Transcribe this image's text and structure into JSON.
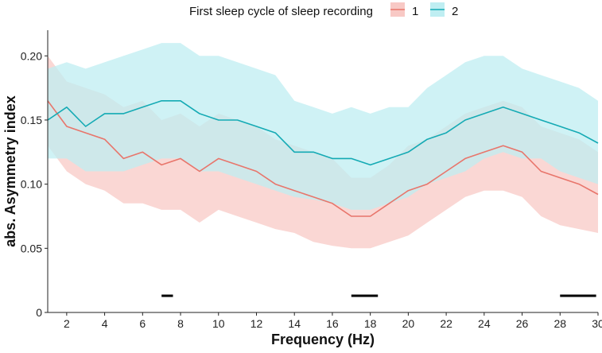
{
  "chart_data": {
    "type": "line",
    "title": "",
    "xlabel": "Frequency (Hz)",
    "ylabel": "abs. Asymmetry index",
    "xlim": [
      1,
      30
    ],
    "ylim": [
      0,
      0.22
    ],
    "x_ticks": [
      2,
      4,
      6,
      8,
      10,
      12,
      14,
      16,
      18,
      20,
      22,
      24,
      26,
      28,
      30
    ],
    "x_tick_labels": [
      "2",
      "4",
      "6",
      "8",
      "10",
      "12",
      "14",
      "16",
      "18",
      "20",
      "22",
      "24",
      "26",
      "28",
      "30"
    ],
    "y_ticks": [
      0,
      0.05,
      0.1,
      0.15,
      0.2
    ],
    "y_tick_labels": [
      "0",
      "0.05",
      "0.10",
      "0.15",
      "0.20"
    ],
    "grid": false,
    "legend": {
      "title": "First sleep cycle of sleep recording",
      "position": "top",
      "entries": [
        "1",
        "2"
      ]
    },
    "x": [
      1,
      2,
      3,
      4,
      5,
      6,
      7,
      8,
      9,
      10,
      11,
      12,
      13,
      14,
      15,
      16,
      17,
      18,
      19,
      20,
      21,
      22,
      23,
      24,
      25,
      26,
      27,
      28,
      29,
      30
    ],
    "series": [
      {
        "name": "1",
        "color": "#e8756b",
        "band_color": "#f8c9c5",
        "values": [
          0.165,
          0.145,
          0.14,
          0.135,
          0.12,
          0.125,
          0.115,
          0.12,
          0.11,
          0.12,
          0.115,
          0.11,
          0.1,
          0.095,
          0.09,
          0.085,
          0.075,
          0.075,
          0.085,
          0.095,
          0.1,
          0.11,
          0.12,
          0.125,
          0.13,
          0.125,
          0.11,
          0.105,
          0.1,
          0.092
        ],
        "lower": [
          0.13,
          0.11,
          0.1,
          0.095,
          0.085,
          0.085,
          0.08,
          0.08,
          0.07,
          0.08,
          0.075,
          0.07,
          0.065,
          0.062,
          0.055,
          0.052,
          0.05,
          0.05,
          0.055,
          0.06,
          0.07,
          0.08,
          0.09,
          0.095,
          0.095,
          0.09,
          0.075,
          0.068,
          0.065,
          0.062
        ],
        "upper": [
          0.2,
          0.18,
          0.175,
          0.17,
          0.16,
          0.165,
          0.15,
          0.155,
          0.145,
          0.155,
          0.15,
          0.145,
          0.135,
          0.13,
          0.125,
          0.12,
          0.105,
          0.105,
          0.115,
          0.13,
          0.135,
          0.145,
          0.155,
          0.16,
          0.165,
          0.16,
          0.145,
          0.14,
          0.135,
          0.125
        ]
      },
      {
        "name": "2",
        "color": "#14aab4",
        "band_color": "#bfeef2",
        "values": [
          0.15,
          0.16,
          0.145,
          0.155,
          0.155,
          0.16,
          0.165,
          0.165,
          0.155,
          0.15,
          0.15,
          0.145,
          0.14,
          0.125,
          0.125,
          0.12,
          0.12,
          0.115,
          0.12,
          0.125,
          0.135,
          0.14,
          0.15,
          0.155,
          0.16,
          0.155,
          0.15,
          0.145,
          0.14,
          0.132
        ],
        "lower": [
          0.12,
          0.12,
          0.11,
          0.11,
          0.11,
          0.115,
          0.12,
          0.12,
          0.11,
          0.11,
          0.105,
          0.1,
          0.095,
          0.09,
          0.088,
          0.085,
          0.08,
          0.08,
          0.085,
          0.09,
          0.1,
          0.105,
          0.11,
          0.12,
          0.125,
          0.12,
          0.12,
          0.11,
          0.105,
          0.1
        ],
        "upper": [
          0.19,
          0.195,
          0.19,
          0.195,
          0.2,
          0.205,
          0.21,
          0.21,
          0.2,
          0.2,
          0.195,
          0.19,
          0.185,
          0.165,
          0.16,
          0.155,
          0.16,
          0.155,
          0.16,
          0.16,
          0.175,
          0.185,
          0.195,
          0.2,
          0.2,
          0.19,
          0.185,
          0.18,
          0.175,
          0.165
        ]
      }
    ],
    "significance_bars": [
      {
        "x_start": 7.0,
        "x_end": 7.6,
        "y": 0.013
      },
      {
        "x_start": 17.0,
        "x_end": 18.4,
        "y": 0.013
      },
      {
        "x_start": 28.0,
        "x_end": 29.9,
        "y": 0.013
      }
    ]
  }
}
